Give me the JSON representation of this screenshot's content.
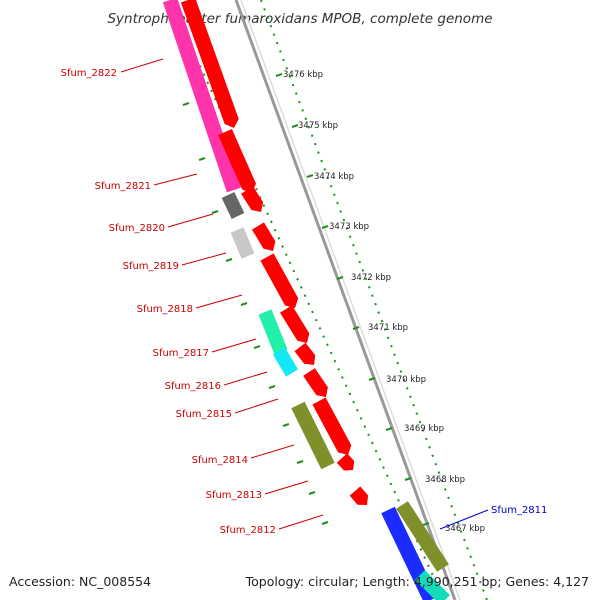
{
  "title": "Syntrophobacter fumaroxidans MPOB, complete genome",
  "footer": {
    "accession": "Accession: NC_008554",
    "summary": "Topology: circular; Length: 4,990,251 bp; Genes: 4,127"
  },
  "colors": {
    "forward_gene": "#ff0000",
    "pink_gene": "#ff33aa",
    "dark_gray_gene": "#666666",
    "light_gray_gene": "#c8c8c8",
    "mint_gene": "#22f0a8",
    "cyan_gene": "#14e8f4",
    "olive_gene": "#7f8f2a",
    "blue_gene": "#1a2cff",
    "label_red": "#cc0000",
    "label_blue": "#0000cc",
    "backbone": "#999999",
    "tick_green": "#1f8f1f"
  },
  "scale_labels": [
    "3476 kbp",
    "3475 kbp",
    "3474 kbp",
    "3473 kbp",
    "3472 kbp",
    "3471 kbp",
    "3470 kbp",
    "3469 kbp",
    "3468 kbp",
    "3467 kbp"
  ],
  "genes": [
    {
      "name": "Sfum_2822",
      "color": "#cc0000"
    },
    {
      "name": "Sfum_2821",
      "color": "#cc0000"
    },
    {
      "name": "Sfum_2820",
      "color": "#cc0000"
    },
    {
      "name": "Sfum_2819",
      "color": "#cc0000"
    },
    {
      "name": "Sfum_2818",
      "color": "#cc0000"
    },
    {
      "name": "Sfum_2817",
      "color": "#cc0000"
    },
    {
      "name": "Sfum_2816",
      "color": "#cc0000"
    },
    {
      "name": "Sfum_2815",
      "color": "#cc0000"
    },
    {
      "name": "Sfum_2814",
      "color": "#cc0000"
    },
    {
      "name": "Sfum_2813",
      "color": "#cc0000"
    },
    {
      "name": "Sfum_2812",
      "color": "#cc0000"
    },
    {
      "name": "Sfum_2811",
      "color": "#0000cc"
    }
  ]
}
